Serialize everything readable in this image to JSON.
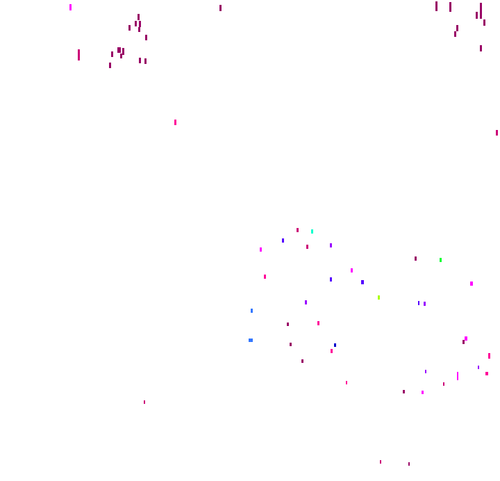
{
  "background": "#ffffff",
  "palette": {
    "magenta": "#ff00ff",
    "maroon": "#990066",
    "crimson": "#cc0077",
    "pink": "#ff0099",
    "violet": "#9900ff",
    "indigo": "#5500ff",
    "blue": "#0000cc",
    "azure": "#3377ff",
    "cyan": "#00ffcc",
    "green": "#00ff33",
    "lime": "#aaff00"
  }
}
